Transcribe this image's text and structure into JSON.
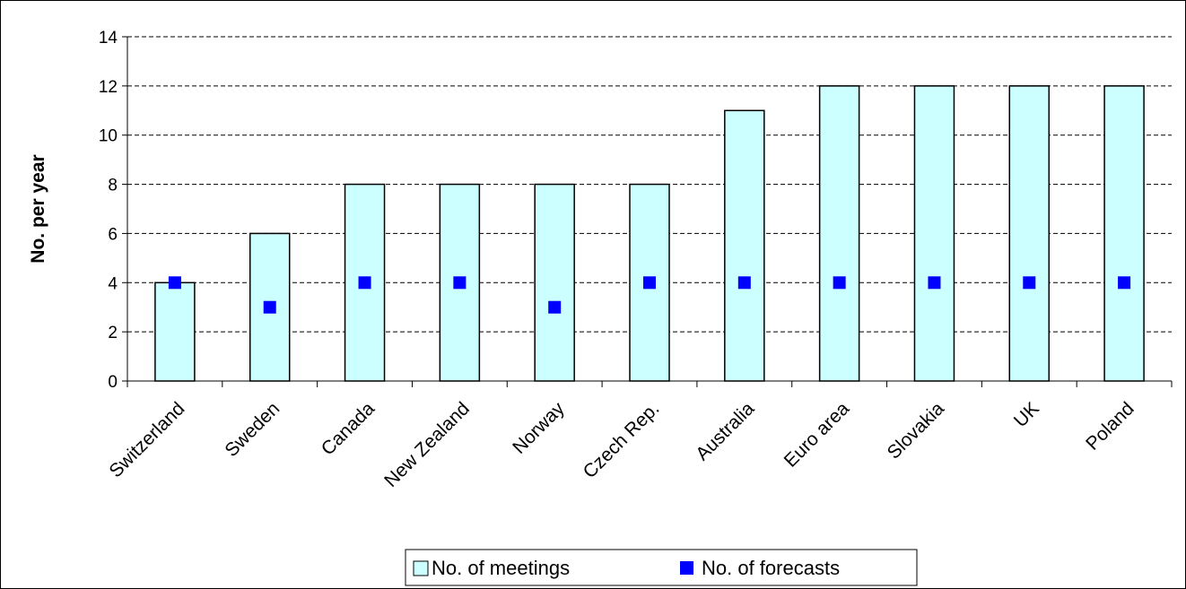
{
  "chart_data": {
    "type": "bar",
    "categories": [
      "Switzerland",
      "Sweden",
      "Canada",
      "New Zealand",
      "Norway",
      "Czech Rep.",
      "Australia",
      "Euro area",
      "Slovakia",
      "UK",
      "Poland"
    ],
    "series": [
      {
        "name": "No. of meetings",
        "kind": "bar",
        "values": [
          4,
          6,
          8,
          8,
          8,
          8,
          11,
          12,
          12,
          12,
          12
        ],
        "color": "#CCFFFF"
      },
      {
        "name": "No. of forecasts",
        "kind": "marker",
        "values": [
          4,
          3,
          4,
          4,
          3,
          4,
          4,
          4,
          4,
          4,
          4
        ],
        "color": "#0000FF"
      }
    ],
    "title": "",
    "xlabel": "",
    "ylabel": "No. per year",
    "ylim": [
      0,
      14
    ],
    "yticks": [
      0,
      2,
      4,
      6,
      8,
      10,
      12,
      14
    ],
    "grid": "horizontal dashed",
    "legend_position": "bottom"
  }
}
